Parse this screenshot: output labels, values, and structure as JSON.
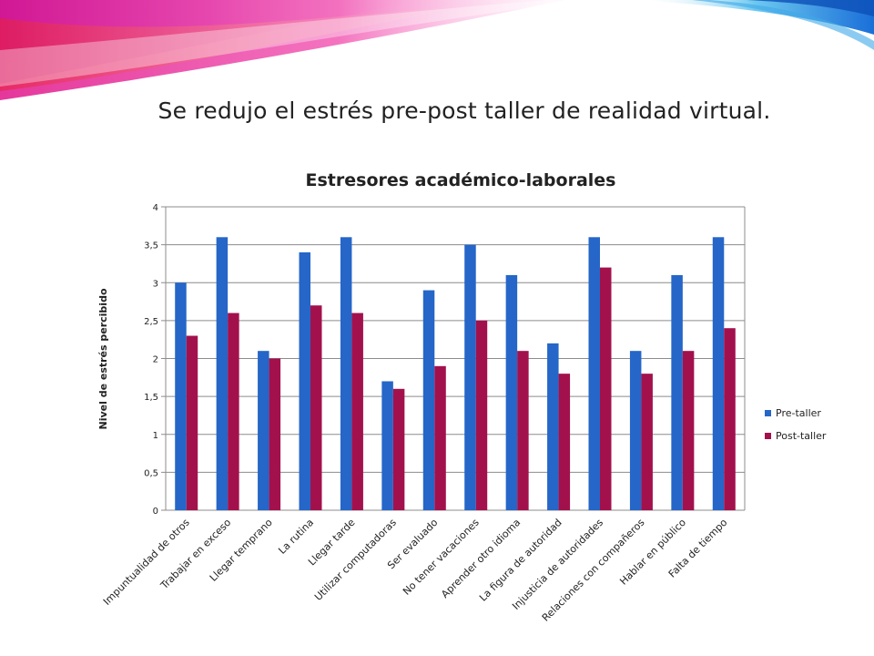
{
  "slide": {
    "headline": "Se redujo el estrés pre-post taller de realidad virtual."
  },
  "colors": {
    "pre": "#2566c8",
    "post": "#a3114d",
    "grid": "#8c8c8c",
    "text": "#222222"
  },
  "chart_data": {
    "type": "bar",
    "title": "Estresores académico-laborales",
    "xlabel": "",
    "ylabel": "Nivel de estrés percibido",
    "ylim": [
      0,
      4
    ],
    "yticks": [
      "0",
      "0,5",
      "1",
      "1,5",
      "2",
      "2,5",
      "3",
      "3,5",
      "4"
    ],
    "grid": true,
    "legend_position": "right",
    "categories": [
      "Impuntualidad de otros",
      "Trabajar en exceso",
      "Llegar temprano",
      "La rutina",
      "Llegar tarde",
      "Utilizar computadoras",
      "Ser evaluado",
      "No tener vacaciones",
      "Aprender otro idioma",
      "La figura de autoridad",
      "Injusticia de autoridades",
      "Relaciones con compañeros",
      "Hablar en público",
      "Falta de tiempo"
    ],
    "series": [
      {
        "name": "Pre-taller",
        "color": "#2566c8",
        "values": [
          3.0,
          3.6,
          2.1,
          3.4,
          3.6,
          1.7,
          2.9,
          3.5,
          3.1,
          2.2,
          3.6,
          2.1,
          3.1,
          3.6
        ]
      },
      {
        "name": "Post-taller",
        "color": "#a3114d",
        "values": [
          2.3,
          2.6,
          2.0,
          2.7,
          2.6,
          1.6,
          1.9,
          2.5,
          2.1,
          1.8,
          3.2,
          1.8,
          2.1,
          2.4
        ]
      }
    ]
  }
}
